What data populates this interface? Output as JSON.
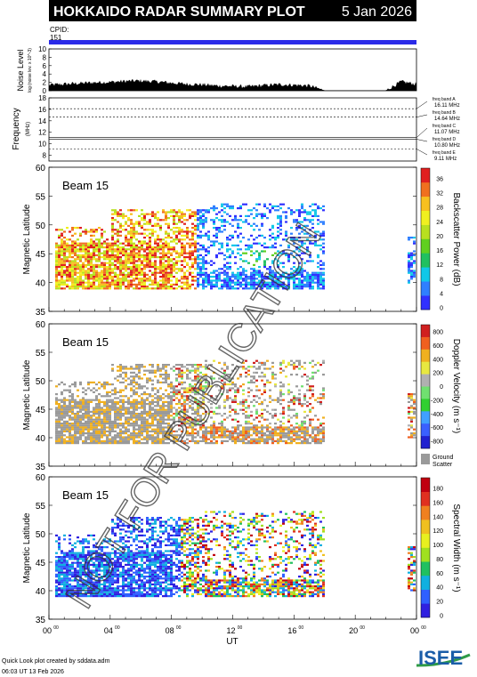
{
  "header": {
    "title": "HOKKAIDO RADAR SUMMARY PLOT",
    "date": "5 Jan 2026",
    "cpid_label": "CPID:",
    "cpid_value": "151",
    "bar_color": "#2a2ae8"
  },
  "noise_panel": {
    "ylabel": "Noise Level",
    "ylabel_sub": "log (noise lev. x 10^-3)",
    "ticks": [
      "0",
      "2",
      "4",
      "6",
      "8",
      "10"
    ]
  },
  "freq_panel": {
    "ylabel": "Frequency",
    "unit": "(MHz)",
    "ticks": [
      "8",
      "10",
      "12",
      "14",
      "16",
      "18"
    ],
    "bands": [
      {
        "label": "freq band A",
        "value": "16.11 MHz",
        "freq": 16.11
      },
      {
        "label": "freq band B",
        "value": "14.64 MHz",
        "freq": 14.64
      },
      {
        "label": "freq band C",
        "value": "11.07 MHz",
        "freq": 11.07
      },
      {
        "label": "freq band D",
        "value": "10.80 MHz",
        "freq": 10.8
      },
      {
        "label": "freq band E",
        "value": "9.11 MHz",
        "freq": 9.11
      }
    ]
  },
  "beam_panels": [
    {
      "beam_label": "Beam 15",
      "ylabel": "Magnetic Latitude",
      "lat_ticks": [
        "35",
        "40",
        "45",
        "50",
        "55",
        "60"
      ],
      "cbar_title": "Backscatter Power (dB)",
      "cbar_ticks": [
        "0",
        "4",
        "8",
        "12",
        "16",
        "20",
        "24",
        "28",
        "32",
        "36"
      ],
      "ground_scatter": ""
    },
    {
      "beam_label": "Beam 15",
      "ylabel": "Magnetic Latitude",
      "lat_ticks": [
        "35",
        "40",
        "45",
        "50",
        "55",
        "60"
      ],
      "cbar_title": "Doppler Velocity (m s⁻¹)",
      "cbar_ticks": [
        "800",
        "600",
        "400",
        "200",
        "0",
        "-200",
        "-400",
        "-600",
        "-800"
      ],
      "ground_scatter": "Ground Scatter"
    },
    {
      "beam_label": "Beam 15",
      "ylabel": "Magnetic Latitude",
      "lat_ticks": [
        "35",
        "40",
        "45",
        "50",
        "55",
        "60"
      ],
      "cbar_title": "Spectral Width (m s⁻¹)",
      "cbar_ticks": [
        "0",
        "20",
        "40",
        "60",
        "80",
        "100",
        "120",
        "140",
        "160",
        "180"
      ],
      "ground_scatter": ""
    }
  ],
  "x_axis": {
    "ticks": [
      "00",
      "04",
      "08",
      "12",
      "16",
      "20",
      "00"
    ],
    "tick_sup": "00",
    "label": "UT"
  },
  "footer": {
    "line1": "Quick Look plot created by sddata.adm",
    "line2": "06:03 UT 13 Feb 2026",
    "logo": "ISEE"
  },
  "watermark": "NOT FOR PUBLICATION",
  "chart_data": {
    "type": "heatmap",
    "title": "HOKKAIDO RADAR SUMMARY PLOT",
    "xlabel": "UT",
    "ylabel": "Magnetic Latitude",
    "xlim": [
      0,
      24
    ],
    "ylim": [
      35,
      60
    ],
    "noise_ylim": [
      0,
      10
    ],
    "freq_ylim": [
      7,
      18
    ],
    "series": [
      {
        "name": "Backscatter Power (dB)",
        "zlim": [
          0,
          36
        ]
      },
      {
        "name": "Doppler Velocity (m s⁻¹)",
        "zlim": [
          -800,
          800
        ]
      },
      {
        "name": "Spectral Width (m s⁻¹)",
        "zlim": [
          0,
          180
        ]
      }
    ],
    "noise_x": [
      0,
      1,
      2,
      3,
      4,
      5,
      6,
      7,
      8,
      9,
      10,
      11,
      12,
      13,
      14,
      15,
      16,
      17,
      18,
      19,
      20,
      21,
      22,
      23,
      24
    ],
    "noise_y": [
      1.4,
      1.6,
      1.8,
      2.0,
      2.1,
      2.3,
      2.4,
      2.2,
      1.9,
      1.6,
      1.5,
      1.2,
      1.1,
      1.0,
      1.3,
      1.5,
      1.4,
      1.2,
      0.1,
      0.1,
      0.1,
      0.1,
      0.1,
      2.2,
      1.6
    ]
  }
}
